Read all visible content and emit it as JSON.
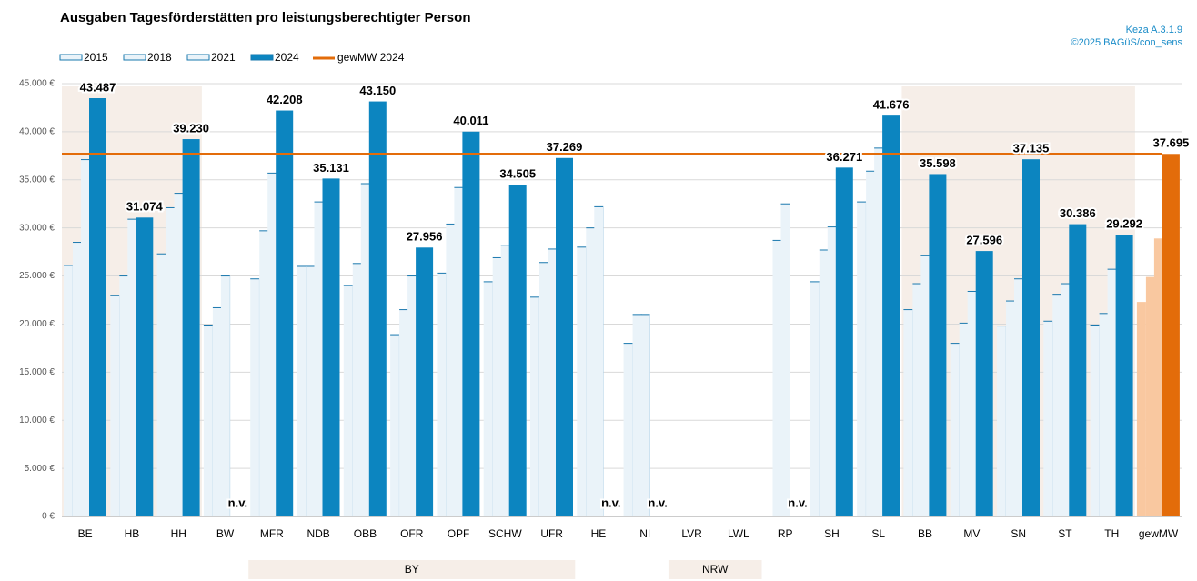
{
  "chart_data": {
    "type": "bar",
    "title": "Ausgaben Tagesförderstätten pro leistungsberechtigter Person",
    "source": [
      "Keza A.3.1.9",
      "©2025 BAGüS/con_sens"
    ],
    "categories": [
      "BE",
      "HB",
      "HH",
      "BW",
      "MFR",
      "NDB",
      "OBB",
      "OFR",
      "OPF",
      "SCHW",
      "UFR",
      "HE",
      "NI",
      "LVR",
      "LWL",
      "RP",
      "SH",
      "SL",
      "BB",
      "MV",
      "SN",
      "ST",
      "TH",
      "gewMW"
    ],
    "series": [
      {
        "name": "2015",
        "color": "#eaf3f9",
        "values": [
          26100,
          23000,
          27300,
          19900,
          24700,
          26000,
          24000,
          18900,
          25300,
          24400,
          22800,
          28000,
          18000,
          null,
          null,
          null,
          24400,
          32700,
          21500,
          18000,
          19800,
          20300,
          19900,
          22300
        ]
      },
      {
        "name": "2018",
        "color": "#eaf3f9",
        "values": [
          28500,
          25000,
          32100,
          21700,
          29700,
          26000,
          26300,
          21500,
          30400,
          26900,
          26400,
          30000,
          21000,
          null,
          null,
          28700,
          27700,
          35900,
          24200,
          20100,
          22400,
          23100,
          21100,
          24900
        ]
      },
      {
        "name": "2021",
        "color": "#eaf3f9",
        "values": [
          37100,
          30900,
          33600,
          25000,
          35700,
          32700,
          34600,
          25000,
          34200,
          28200,
          27800,
          32200,
          21000,
          null,
          null,
          32500,
          30100,
          38300,
          27100,
          23400,
          24700,
          24200,
          25700,
          28900
        ]
      },
      {
        "name": "2024",
        "color": "#0c85c0",
        "values": [
          43487,
          31074,
          39230,
          null,
          42208,
          35131,
          43150,
          27956,
          40011,
          34505,
          37269,
          null,
          null,
          null,
          null,
          null,
          36271,
          41676,
          35598,
          27596,
          37135,
          30386,
          29292,
          37695
        ],
        "value_labels": [
          "43.487",
          "31.074",
          "39.230",
          "n.v.",
          "42.208",
          "35.131",
          "43.150",
          "27.956",
          "40.011",
          "34.505",
          "37.269",
          "n.v.",
          "n.v.",
          null,
          null,
          "n.v.",
          "36.271",
          "41.676",
          "35.598",
          "27.596",
          "37.135",
          "30.386",
          "29.292",
          "37.695"
        ]
      }
    ],
    "edge_color": "#1a78ae",
    "highlight_colors": [
      "#f9c8a0",
      "#f9c8a0",
      "#f9c8a0",
      "#e36c0a"
    ],
    "line_name": "gewMW 2024",
    "line_color": "#e36c0a",
    "ylim": [
      0,
      45000
    ],
    "yticks": [
      {
        "value": 0,
        "label": "0 €"
      },
      {
        "value": 5000,
        "label": "5.000 €"
      },
      {
        "value": 10000,
        "label": "10.000 €"
      },
      {
        "value": 15000,
        "label": "15.000 €"
      },
      {
        "value": 20000,
        "label": "20.000 €"
      },
      {
        "value": 25000,
        "label": "25.000 €"
      },
      {
        "value": 30000,
        "label": "30.000 €"
      },
      {
        "value": 35000,
        "label": "35.000 €"
      },
      {
        "value": 40000,
        "label": "40.000 €"
      },
      {
        "value": 45000,
        "label": "45.000 €"
      }
    ],
    "grid": true,
    "groups": [
      {
        "label": "BY",
        "start": 4,
        "end": 10
      },
      {
        "label": "NRW",
        "start": 13,
        "end": 14
      }
    ],
    "shaded": [
      {
        "start": 0,
        "end": 2
      },
      {
        "start": 18,
        "end": 22
      }
    ]
  }
}
